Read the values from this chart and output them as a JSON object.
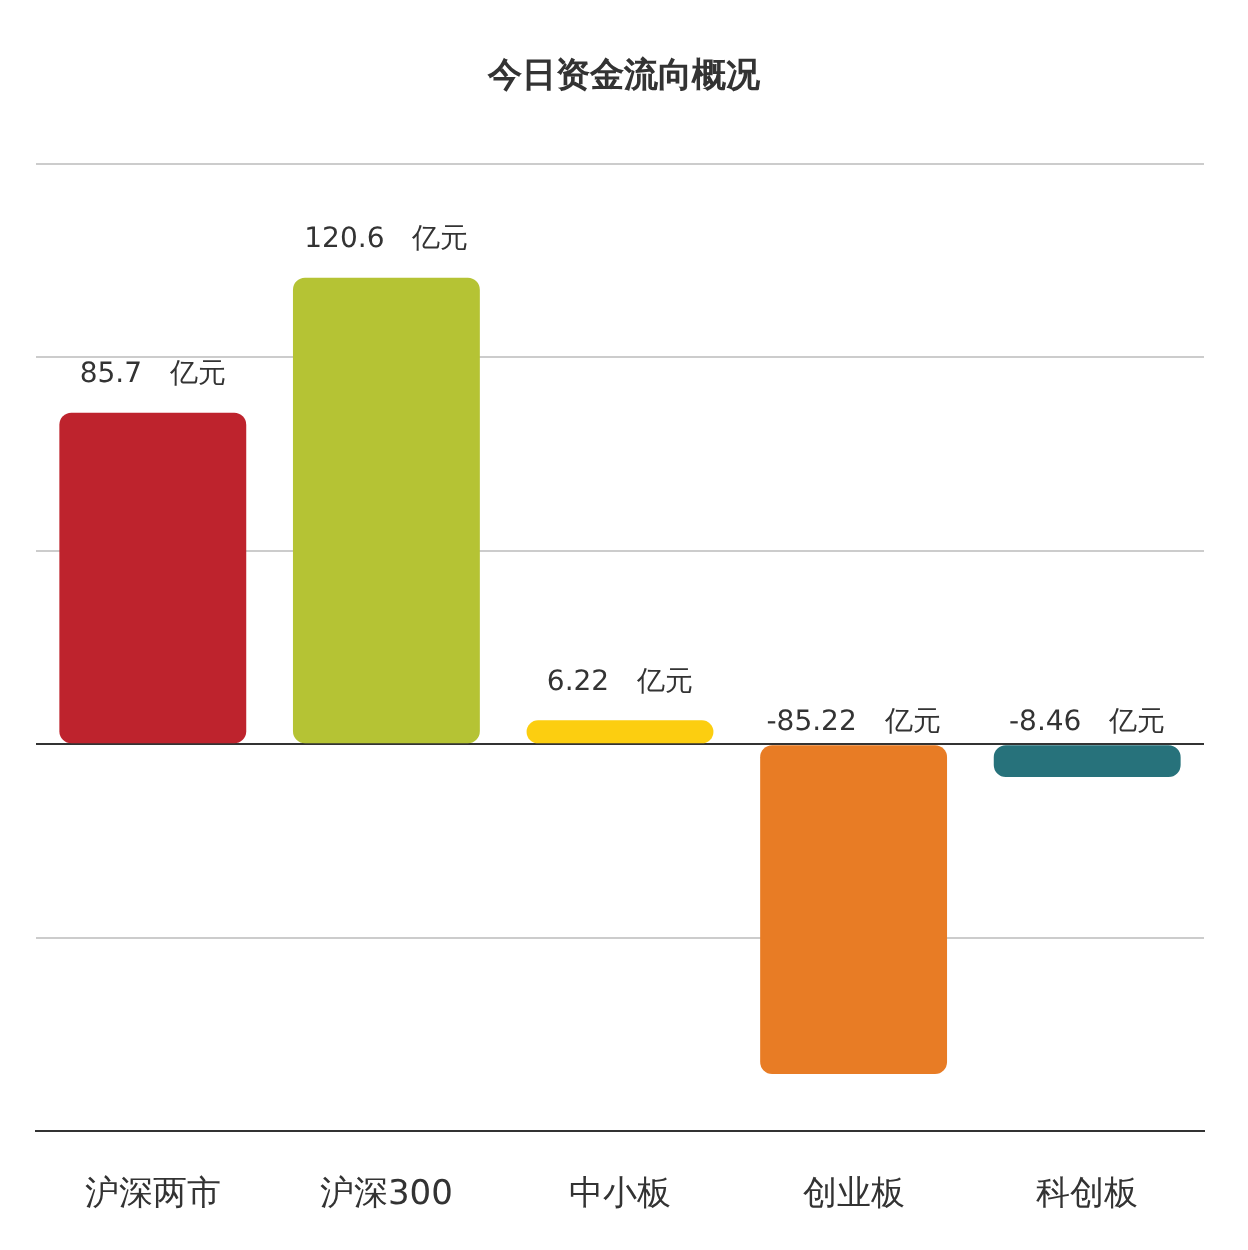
{
  "chart_data": {
    "type": "bar",
    "title": "今日资金流向概况",
    "categories": [
      "沪深两市",
      "沪深300",
      "中小板",
      "创业板",
      "科创板"
    ],
    "values": [
      85.7,
      120.6,
      6.22,
      -85.22,
      -8.46
    ],
    "colors": [
      "#be232d",
      "#b5c334",
      "#fcce10",
      "#e87c25",
      "#27727b"
    ],
    "value_labels": [
      "85.7　亿元",
      "120.6　亿元",
      "6.22　亿元",
      "-85.22　亿元",
      "-8.46　亿元"
    ],
    "ylim": [
      -100,
      150
    ],
    "yticks": [
      {
        "value": -100,
        "label": null
      },
      {
        "value": -50,
        "label": null
      },
      {
        "value": 0,
        "label": null
      },
      {
        "value": 50,
        "label": null
      },
      {
        "value": 100,
        "label": null
      },
      {
        "value": 150,
        "label": null
      }
    ],
    "grid": "y",
    "tick_labels": "x",
    "legend": false
  }
}
